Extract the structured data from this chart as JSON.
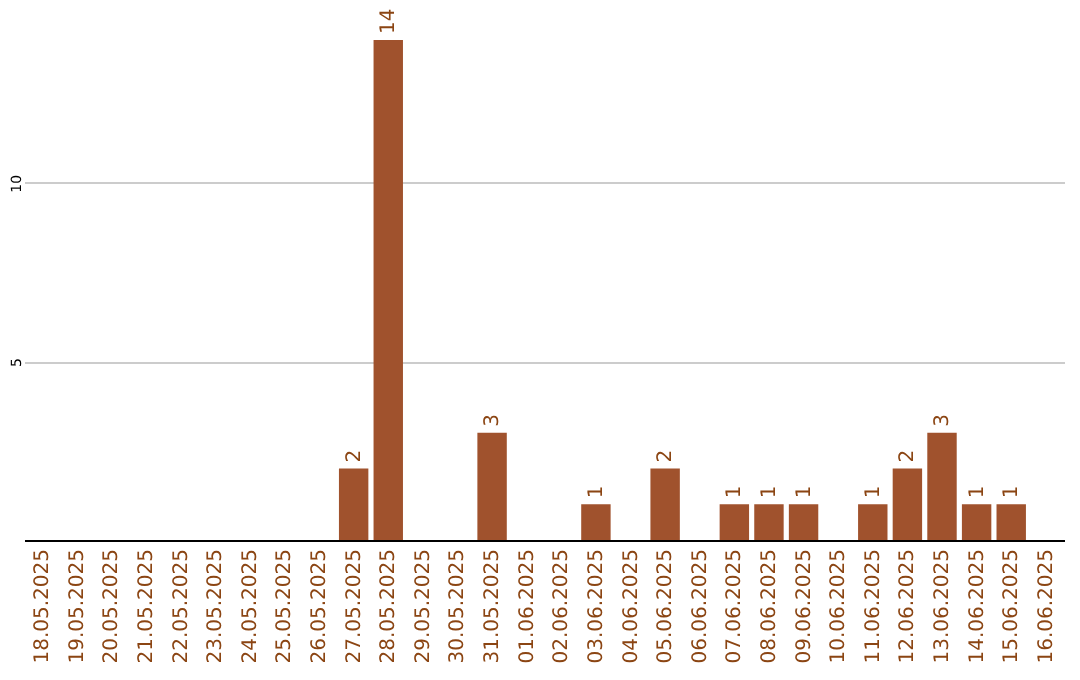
{
  "chart_data": {
    "type": "bar",
    "categories": [
      "18.05.2025",
      "19.05.2025",
      "20.05.2025",
      "21.05.2025",
      "22.05.2025",
      "23.05.2025",
      "24.05.2025",
      "25.05.2025",
      "26.05.2025",
      "27.05.2025",
      "28.05.2025",
      "29.05.2025",
      "30.05.2025",
      "31.05.2025",
      "01.06.2025",
      "02.06.2025",
      "03.06.2025",
      "04.06.2025",
      "05.06.2025",
      "06.06.2025",
      "07.06.2025",
      "08.06.2025",
      "09.06.2025",
      "10.06.2025",
      "11.06.2025",
      "12.06.2025",
      "13.06.2025",
      "14.06.2025",
      "15.06.2025",
      "16.06.2025"
    ],
    "values": [
      0,
      0,
      0,
      0,
      0,
      0,
      0,
      0,
      0,
      2,
      14,
      0,
      0,
      3,
      0,
      0,
      1,
      0,
      2,
      0,
      1,
      1,
      1,
      0,
      1,
      2,
      3,
      1,
      1,
      0
    ],
    "value_labels": [
      null,
      null,
      null,
      null,
      null,
      null,
      null,
      null,
      null,
      "2",
      "14",
      null,
      null,
      "3",
      null,
      null,
      "1",
      null,
      "2",
      null,
      "1",
      "1",
      "1",
      null,
      "1",
      "2",
      "3",
      "1",
      "1",
      null
    ],
    "color": "#a0522d",
    "ylim": [
      0,
      14
    ],
    "yticks": [
      5,
      10
    ],
    "grid": "y"
  }
}
